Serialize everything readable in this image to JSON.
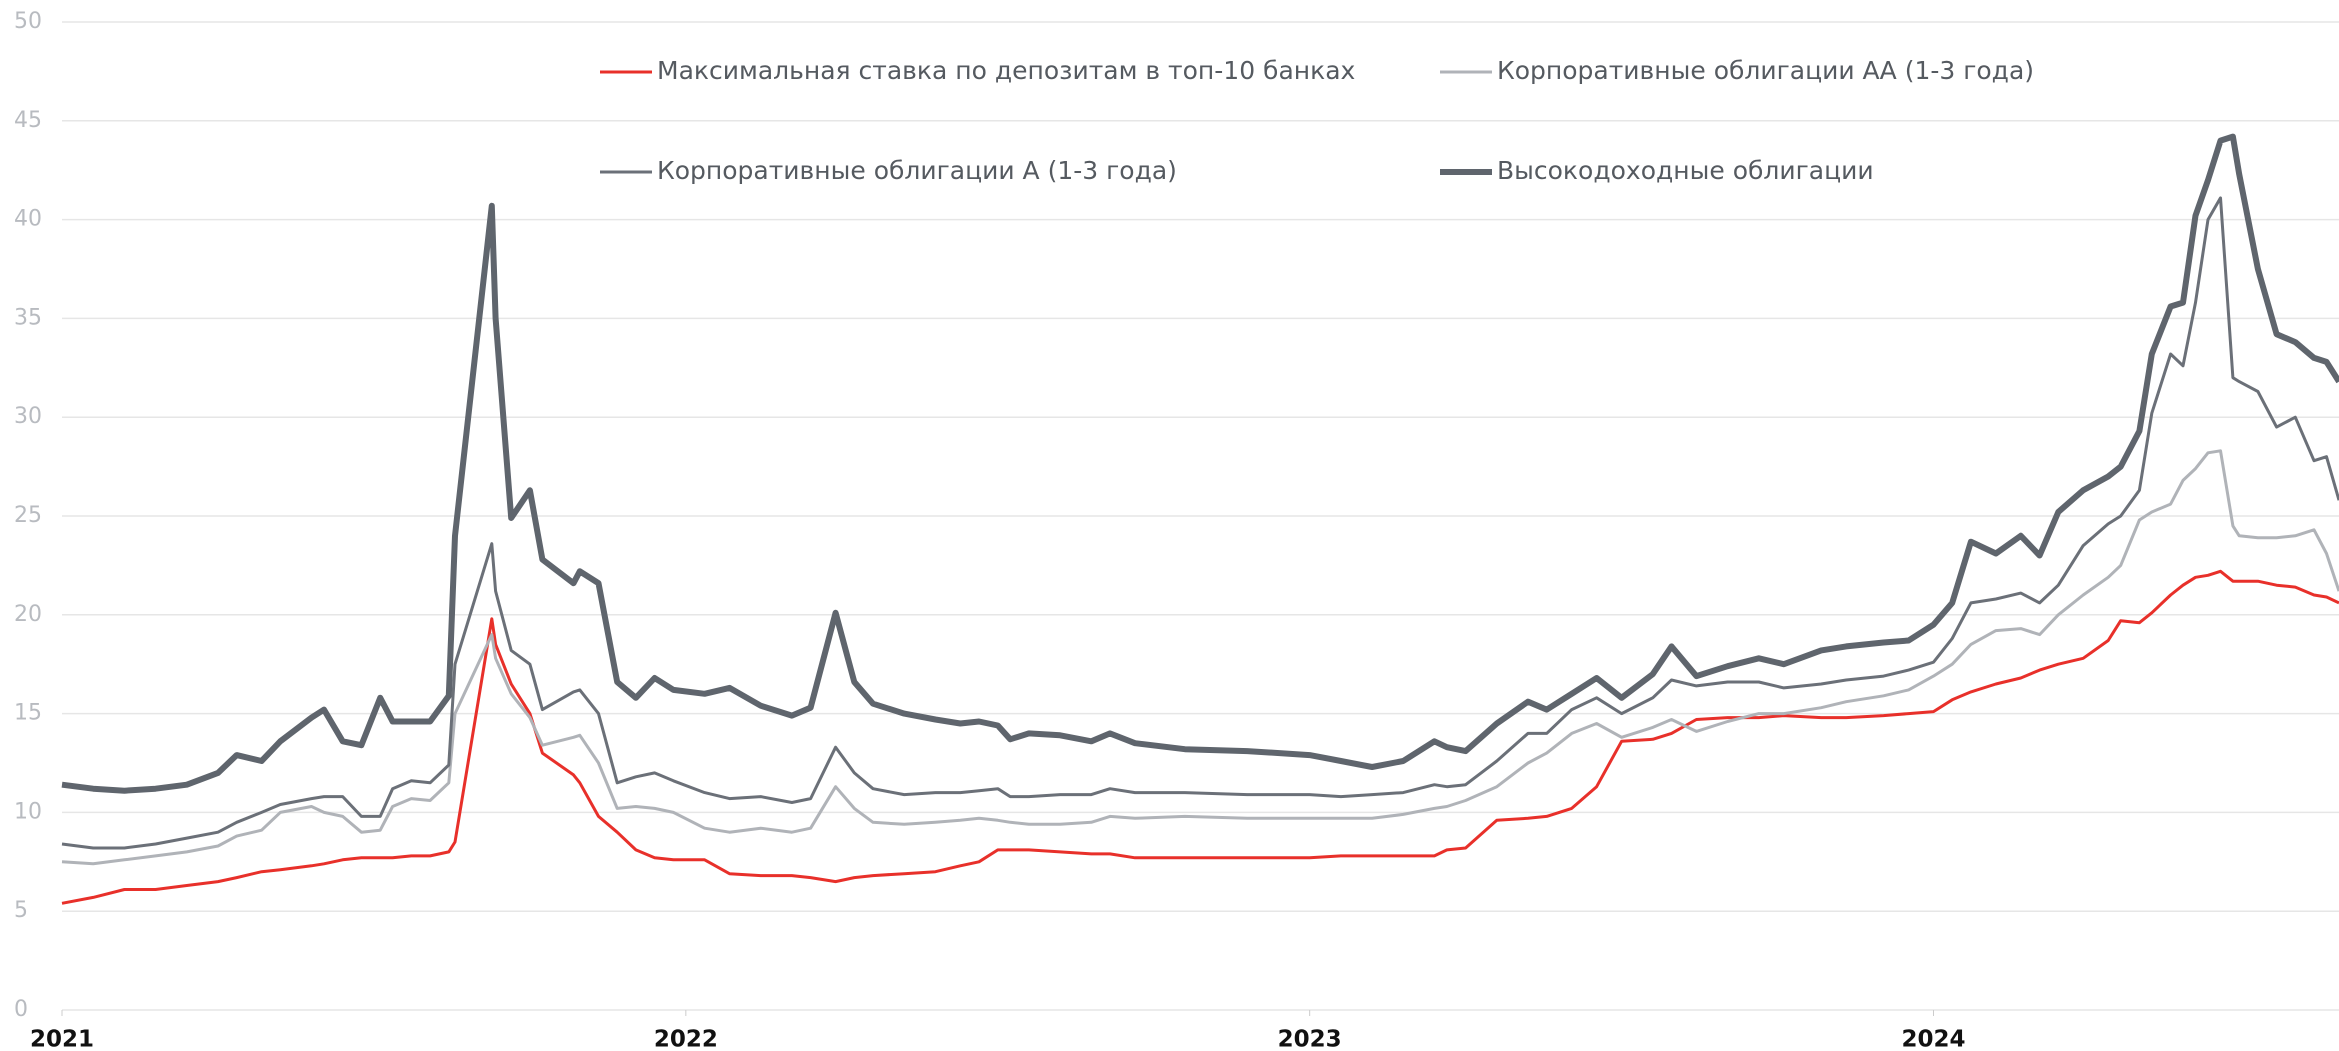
{
  "chart_data": {
    "type": "line",
    "x": [
      2021.0,
      2021.05,
      2021.1,
      2021.15,
      2021.2,
      2021.25,
      2021.28,
      2021.32,
      2021.35,
      2021.4,
      2021.42,
      2021.45,
      2021.48,
      2021.51,
      2021.53,
      2021.56,
      2021.59,
      2021.62,
      2021.63,
      2021.689,
      2021.695,
      2021.72,
      2021.75,
      2021.77,
      2021.82,
      2021.83,
      2021.86,
      2021.89,
      2021.92,
      2021.95,
      2021.98,
      2022.03,
      2022.07,
      2022.12,
      2022.17,
      2022.2,
      2022.24,
      2022.27,
      2022.3,
      2022.35,
      2022.4,
      2022.44,
      2022.47,
      2022.5,
      2022.52,
      2022.55,
      2022.6,
      2022.65,
      2022.68,
      2022.72,
      2022.8,
      2022.9,
      2023.0,
      2023.05,
      2023.1,
      2023.15,
      2023.2,
      2023.22,
      2023.25,
      2023.3,
      2023.35,
      2023.38,
      2023.42,
      2023.46,
      2023.5,
      2023.55,
      2023.58,
      2023.62,
      2023.67,
      2023.72,
      2023.76,
      2023.82,
      2023.86,
      2023.92,
      2023.96,
      2024.0,
      2024.03,
      2024.06,
      2024.1,
      2024.14,
      2024.17,
      2024.2,
      2024.24,
      2024.28,
      2024.3,
      2024.33,
      2024.35,
      2024.38,
      2024.4,
      2024.42,
      2024.44,
      2024.46,
      2024.48,
      2024.49,
      2024.52,
      2024.55,
      2024.58,
      2024.61,
      2024.63,
      2024.65
    ],
    "series": [
      {
        "name": "Максимальная ставка по депозитам в топ-10 банках",
        "color": "#e8302a",
        "width": 3,
        "values": [
          5.4,
          5.7,
          6.1,
          6.1,
          6.3,
          6.5,
          6.7,
          7.0,
          7.1,
          7.3,
          7.4,
          7.6,
          7.7,
          7.7,
          7.7,
          7.8,
          7.8,
          8.0,
          8.5,
          19.8,
          18.5,
          16.5,
          15.0,
          13.0,
          11.9,
          11.5,
          9.8,
          9.0,
          8.1,
          7.7,
          7.6,
          7.6,
          6.9,
          6.8,
          6.8,
          6.7,
          6.5,
          6.7,
          6.8,
          6.9,
          7.0,
          7.3,
          7.5,
          8.1,
          8.1,
          8.1,
          8.0,
          7.9,
          7.9,
          7.7,
          7.7,
          7.7,
          7.7,
          7.8,
          7.8,
          7.8,
          7.8,
          8.1,
          8.2,
          9.6,
          9.7,
          9.8,
          10.2,
          11.3,
          13.6,
          13.7,
          14.0,
          14.7,
          14.8,
          14.8,
          14.9,
          14.8,
          14.8,
          14.9,
          15.0,
          15.1,
          15.7,
          16.1,
          16.5,
          16.8,
          17.2,
          17.5,
          17.8,
          18.7,
          19.7,
          19.6,
          20.1,
          21.0,
          21.5,
          21.9,
          22.0,
          22.2,
          21.7,
          21.7,
          21.7,
          21.5,
          21.4,
          21.0,
          20.9,
          20.6
        ]
      },
      {
        "name": "Корпоративные облигации АА (1-3 года)",
        "color": "#b0b3b8",
        "width": 3,
        "values": [
          7.5,
          7.4,
          7.6,
          7.8,
          8.0,
          8.3,
          8.8,
          9.1,
          10.0,
          10.3,
          10.0,
          9.8,
          9.0,
          9.1,
          10.3,
          10.7,
          10.6,
          11.5,
          15.0,
          19.0,
          17.8,
          16.0,
          14.8,
          13.4,
          13.8,
          13.9,
          12.5,
          10.2,
          10.3,
          10.2,
          10.0,
          9.2,
          9.0,
          9.2,
          9.0,
          9.2,
          11.3,
          10.2,
          9.5,
          9.4,
          9.5,
          9.6,
          9.7,
          9.6,
          9.5,
          9.4,
          9.4,
          9.5,
          9.8,
          9.7,
          9.8,
          9.7,
          9.7,
          9.7,
          9.7,
          9.9,
          10.2,
          10.3,
          10.6,
          11.3,
          12.5,
          13.0,
          14.0,
          14.5,
          13.8,
          14.3,
          14.7,
          14.1,
          14.6,
          15.0,
          15.0,
          15.3,
          15.6,
          15.9,
          16.2,
          16.9,
          17.5,
          18.5,
          19.2,
          19.3,
          19.0,
          20.0,
          21.0,
          21.9,
          22.5,
          24.8,
          25.2,
          25.6,
          26.8,
          27.4,
          28.2,
          28.3,
          24.5,
          24.0,
          23.9,
          23.9,
          24.0,
          24.3,
          23.1,
          21.2
        ]
      },
      {
        "name": "Корпоративные облигации А (1-3 года)",
        "color": "#6b7078",
        "width": 3,
        "values": [
          8.4,
          8.2,
          8.2,
          8.4,
          8.7,
          9.0,
          9.5,
          10.0,
          10.4,
          10.7,
          10.8,
          10.8,
          9.8,
          9.8,
          11.2,
          11.6,
          11.5,
          12.4,
          17.5,
          23.6,
          21.2,
          18.2,
          17.5,
          15.2,
          16.1,
          16.2,
          15.0,
          11.5,
          11.8,
          12.0,
          11.6,
          11.0,
          10.7,
          10.8,
          10.5,
          10.7,
          13.3,
          12.0,
          11.2,
          10.9,
          11.0,
          11.0,
          11.1,
          11.2,
          10.8,
          10.8,
          10.9,
          10.9,
          11.2,
          11.0,
          11.0,
          10.9,
          10.9,
          10.8,
          10.9,
          11.0,
          11.4,
          11.3,
          11.4,
          12.6,
          14.0,
          14.0,
          15.2,
          15.8,
          15.0,
          15.8,
          16.7,
          16.4,
          16.6,
          16.6,
          16.3,
          16.5,
          16.7,
          16.9,
          17.2,
          17.6,
          18.8,
          20.6,
          20.8,
          21.1,
          20.6,
          21.5,
          23.5,
          24.6,
          25.0,
          26.3,
          30.2,
          33.2,
          32.6,
          35.8,
          40.0,
          41.1,
          32.0,
          31.8,
          31.3,
          29.5,
          30.0,
          27.8,
          28.0,
          25.8
        ]
      },
      {
        "name": "Высокодоходные облигации",
        "color": "#5f656d",
        "width": 6,
        "values": [
          11.4,
          11.2,
          11.1,
          11.2,
          11.4,
          12.0,
          12.9,
          12.6,
          13.6,
          14.8,
          15.2,
          13.6,
          13.4,
          15.8,
          14.6,
          14.6,
          14.6,
          15.9,
          24.0,
          40.7,
          35.0,
          24.9,
          26.3,
          22.8,
          21.6,
          22.2,
          21.6,
          16.6,
          15.8,
          16.8,
          16.2,
          16.0,
          16.3,
          15.4,
          14.9,
          15.3,
          20.1,
          16.6,
          15.5,
          15.0,
          14.7,
          14.5,
          14.6,
          14.4,
          13.7,
          14.0,
          13.9,
          13.6,
          14.0,
          13.5,
          13.2,
          13.1,
          12.9,
          12.6,
          12.3,
          12.6,
          13.6,
          13.3,
          13.1,
          14.5,
          15.6,
          15.2,
          16.0,
          16.8,
          15.8,
          17.0,
          18.4,
          16.9,
          17.4,
          17.8,
          17.5,
          18.2,
          18.4,
          18.6,
          18.7,
          19.5,
          20.6,
          23.7,
          23.1,
          24.0,
          23.0,
          25.2,
          26.3,
          27.0,
          27.5,
          29.3,
          33.2,
          35.6,
          35.8,
          40.2,
          42.0,
          44.0,
          44.2,
          42.3,
          37.5,
          34.2,
          33.8,
          33.0,
          32.8,
          31.8
        ]
      }
    ],
    "xlim": [
      2021,
      2024.65
    ],
    "xticks": [
      2021,
      2022,
      2023,
      2024
    ],
    "ylim": [
      0,
      50
    ],
    "yticks": [
      0,
      5,
      10,
      15,
      20,
      25,
      30,
      35,
      40,
      45,
      50
    ],
    "grid": true
  }
}
